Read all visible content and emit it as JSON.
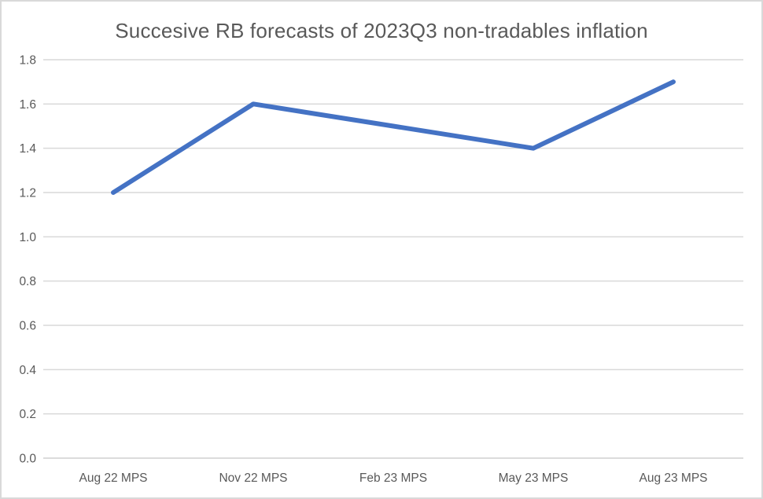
{
  "chart_data": {
    "type": "line",
    "title": "Succesive RB forecasts of 2023Q3 non-tradables inflation",
    "categories": [
      "Aug 22 MPS",
      "Nov 22 MPS",
      "Feb 23 MPS",
      "May 23 MPS",
      "Aug 23 MPS"
    ],
    "values": [
      1.2,
      1.6,
      1.5,
      1.4,
      1.7
    ],
    "xlabel": "",
    "ylabel": "",
    "ylim": [
      0,
      1.8
    ],
    "ytick_step": 0.2,
    "ytick_labels": [
      "0.0",
      "0.2",
      "0.4",
      "0.6",
      "0.8",
      "1.0",
      "1.2",
      "1.4",
      "1.6",
      "1.8"
    ],
    "grid": true,
    "legend_position": "none",
    "colors": {
      "line": "#4472C4",
      "gridline": "#D9D9D9",
      "axis_line": "#D0D0D0",
      "tick_text": "#595959",
      "title_text": "#595959",
      "chart_border": "#D9D9D9",
      "background": "#FFFFFF"
    }
  }
}
